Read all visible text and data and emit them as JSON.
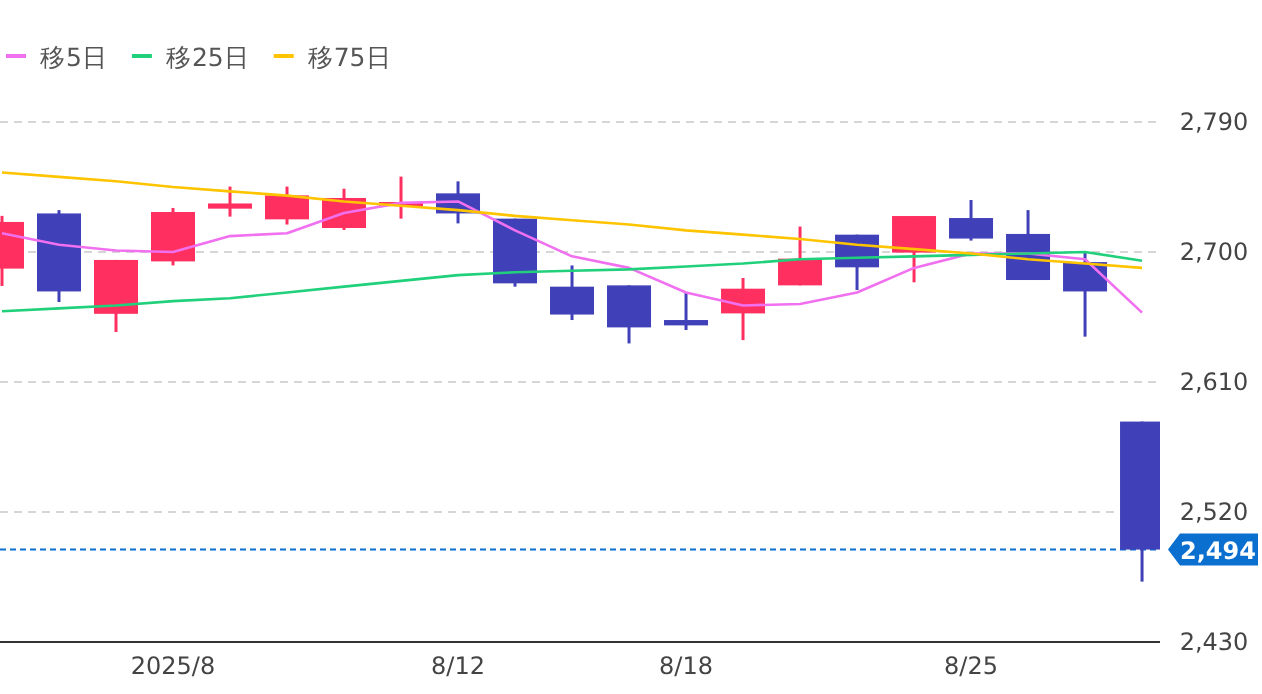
{
  "chart_data": {
    "type": "candlestick",
    "categories": [
      null,
      null,
      null,
      "2025/8",
      null,
      null,
      null,
      null,
      "8/12",
      null,
      null,
      null,
      "8/18",
      null,
      null,
      null,
      null,
      "8/25",
      null,
      null,
      null
    ],
    "ohlc": [
      [
        2688.5,
        2725,
        2676.5,
        2720.8
      ],
      [
        2726.7,
        2729,
        2665.4,
        2672.7
      ],
      [
        2657.2,
        2694.5,
        2644.6,
        2694.5
      ],
      [
        2693.5,
        2730.5,
        2690.7,
        2727.7
      ],
      [
        2730,
        2745.3,
        2724.5,
        2733.6
      ],
      [
        2722.6,
        2745.3,
        2719,
        2739.2
      ],
      [
        2716.6,
        2743.8,
        2715.2,
        2737.4
      ],
      [
        2731.8,
        2752.2,
        2723.1,
        2734.6
      ],
      [
        2740.6,
        2748.9,
        2719.8,
        2726.7
      ],
      [
        2723.1,
        2723.1,
        2676,
        2678.3
      ],
      [
        2676,
        2690.7,
        2652.9,
        2656.7
      ],
      [
        2676.9,
        2676.9,
        2636.7,
        2647.8
      ],
      [
        2652.9,
        2672.3,
        2646,
        2649.2
      ],
      [
        2657.5,
        2682,
        2639,
        2674.6
      ],
      [
        2676.9,
        2717.6,
        2676.9,
        2695.4
      ],
      [
        2712,
        2712,
        2673.7,
        2689.4
      ],
      [
        2699.6,
        2724.9,
        2679,
        2724.9
      ],
      [
        2723.5,
        2736,
        2707.9,
        2709.3
      ],
      [
        2712.5,
        2729,
        2680.6,
        2680.6
      ],
      [
        2693,
        2700,
        2641.4,
        2672.7
      ],
      [
        2582.6,
        2582.6,
        2471.8,
        2494
      ]
    ],
    "colors": [
      "#ff3060",
      "#4040b8",
      "#ff3060",
      "#ff3060",
      "#ff3060",
      "#ff3060",
      "#ff3060",
      "#ff3060",
      "#4040b8",
      "#4040b8",
      "#4040b8",
      "#4040b8",
      "#4040b8",
      "#ff3060",
      "#ff3060",
      "#4040b8",
      "#ff3060",
      "#4040b8",
      "#4040b8",
      "#4040b8",
      "#4040b8"
    ],
    "series": [
      {
        "name": "移5日",
        "type": "line",
        "color": "#f070f0",
        "values": [
          2713,
          2705,
          2701,
          2700,
          2711,
          2713,
          2727,
          2734,
          2735,
          2715,
          2697,
          2689,
          2672,
          2663,
          2664,
          2672,
          2689,
          2699,
          2699,
          2695,
          2658
        ]
      },
      {
        "name": "移25日",
        "type": "line",
        "color": "#20d07a",
        "values": [
          2659,
          2661,
          2663,
          2666,
          2668,
          2672,
          2676,
          2680,
          2684,
          2686,
          2687,
          2688,
          2690,
          2692,
          2695,
          2696,
          2697,
          2698,
          2699,
          2700,
          2694
        ]
      },
      {
        "name": "移75日",
        "type": "line",
        "color": "#ffc400",
        "values": [
          2755,
          2752,
          2749,
          2745,
          2742,
          2739,
          2735,
          2732,
          2729,
          2725,
          2722,
          2719,
          2715,
          2712,
          2709,
          2705,
          2702,
          2699,
          2695,
          2692,
          2689
        ]
      }
    ],
    "ylim": [
      2430,
      2790
    ],
    "yticks": [
      {
        "value": 2430,
        "label": "2,430"
      },
      {
        "value": 2520,
        "label": "2,520"
      },
      {
        "value": 2610,
        "label": "2,610"
      },
      {
        "value": 2700,
        "label": "2,700"
      },
      {
        "value": 2790,
        "label": "2,790"
      }
    ],
    "grid": "y",
    "legend": "top left",
    "ref_lines": [
      {
        "axis": "y",
        "value": 2494,
        "label": "2,494",
        "color": "#0b6fd0",
        "line_style": "dashed"
      }
    ]
  }
}
